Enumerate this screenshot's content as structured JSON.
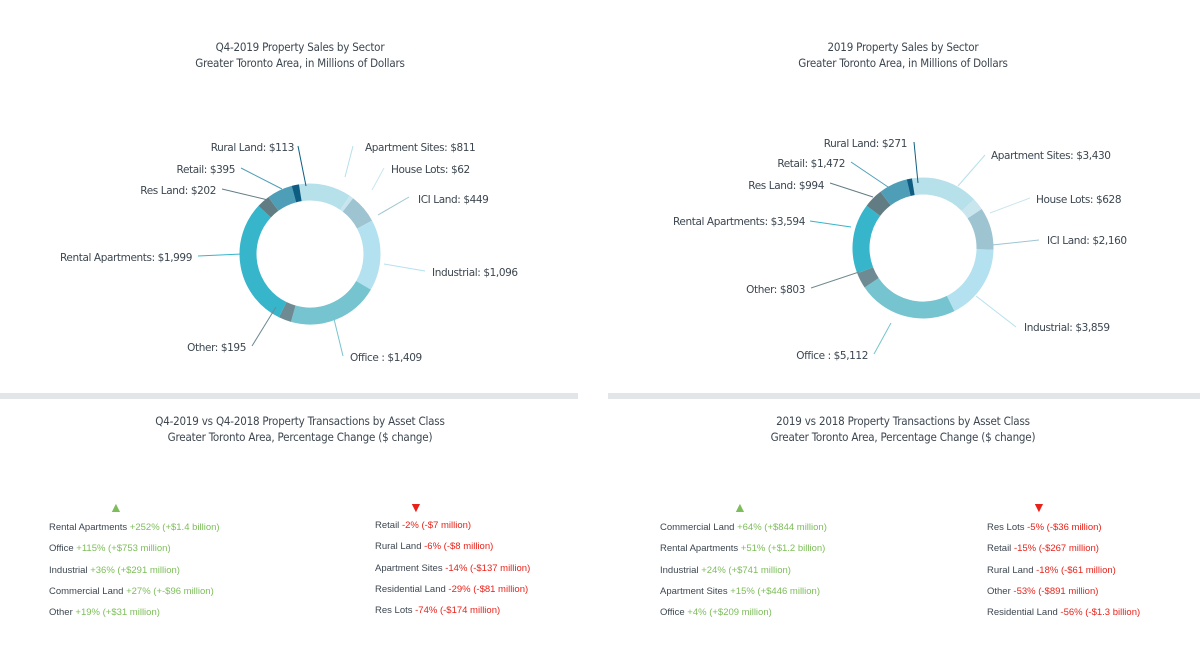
{
  "chart_data": [
    {
      "type": "pie",
      "style": "donut",
      "title": "Q4-2019 Property Sales by Sector",
      "subtitle": "Greater Toronto Area, in Millions of Dollars",
      "unit": "$ millions",
      "labels": [
        {
          "text": "Apartment Sites: $811"
        },
        {
          "text": "House Lots: $62"
        },
        {
          "text": "ICI Land: $449"
        },
        {
          "text": "Industrial: $1,096"
        },
        {
          "text": "Office : $1,409"
        },
        {
          "text": "Other: $195"
        },
        {
          "text": "Rental Apartments: $1,999"
        },
        {
          "text": "Res Land: $202"
        },
        {
          "text": "Retail: $395"
        },
        {
          "text": "Rural Land: $113"
        }
      ],
      "slices": [
        {
          "name": "Apartment Sites",
          "value": 811,
          "color": "#b6e0ea"
        },
        {
          "name": "House Lots",
          "value": 62,
          "color": "#c9e6ee"
        },
        {
          "name": "ICI Land",
          "value": 449,
          "color": "#9ec4d2"
        },
        {
          "name": "Industrial",
          "value": 1096,
          "color": "#b4e1ef"
        },
        {
          "name": "Office",
          "value": 1409,
          "color": "#76c4cf"
        },
        {
          "name": "Other",
          "value": 195,
          "color": "#6e8a92"
        },
        {
          "name": "Rental Apartments",
          "value": 1999,
          "color": "#36b5cb"
        },
        {
          "name": "Res Land",
          "value": 202,
          "color": "#627c84"
        },
        {
          "name": "Retail",
          "value": 395,
          "color": "#4f9eb8"
        },
        {
          "name": "Rural Land",
          "value": 113,
          "color": "#0e5d82"
        }
      ]
    },
    {
      "type": "pie",
      "style": "donut",
      "title": "2019 Property Sales by Sector",
      "subtitle": "Greater Toronto Area, in Millions of Dollars",
      "unit": "$ millions",
      "labels": [
        {
          "text": "Apartment Sites: $3,430"
        },
        {
          "text": "House Lots: $628"
        },
        {
          "text": "ICI Land: $2,160"
        },
        {
          "text": "Industrial: $3,859"
        },
        {
          "text": "Office : $5,112"
        },
        {
          "text": "Other: $803"
        },
        {
          "text": "Rental Apartments: $3,594"
        },
        {
          "text": "Res Land: $994"
        },
        {
          "text": "Retail: $1,472"
        },
        {
          "text": "Rural Land: $271"
        }
      ],
      "slices": [
        {
          "name": "Apartment Sites",
          "value": 3430,
          "color": "#b6e0ea"
        },
        {
          "name": "House Lots",
          "value": 628,
          "color": "#c9e6ee"
        },
        {
          "name": "ICI Land",
          "value": 2160,
          "color": "#9ec4d2"
        },
        {
          "name": "Industrial",
          "value": 3859,
          "color": "#b4e1ef"
        },
        {
          "name": "Office",
          "value": 5112,
          "color": "#76c4cf"
        },
        {
          "name": "Other",
          "value": 803,
          "color": "#6e8a92"
        },
        {
          "name": "Rental Apartments",
          "value": 3594,
          "color": "#36b5cb"
        },
        {
          "name": "Res Land",
          "value": 994,
          "color": "#627c84"
        },
        {
          "name": "Retail",
          "value": 1472,
          "color": "#4f9eb8"
        },
        {
          "name": "Rural Land",
          "value": 271,
          "color": "#0e5d82"
        }
      ]
    }
  ],
  "change_panels": [
    {
      "title": "Q4-2019 vs Q4-2018 Property Transactions by Asset Class",
      "subtitle": "Greater Toronto Area, Percentage Change ($ change)",
      "increases": [
        {
          "name": "Rental Apartments",
          "change": "+252% (+$1.4 billion)"
        },
        {
          "name": "Office",
          "change": "+115% (+$753 million)"
        },
        {
          "name": "Industrial",
          "change": "+36% (+$291 million)"
        },
        {
          "name": "Commercial Land",
          "change": "+27% (+-$96 million)"
        },
        {
          "name": "Other",
          "change": "+19% (+$31 million)"
        }
      ],
      "decreases": [
        {
          "name": "Retail",
          "change": "-2% (-$7 million)"
        },
        {
          "name": "Rural Land",
          "change": "-6%  (-$8 million)"
        },
        {
          "name": "Apartment Sites",
          "change": "-14% (-$137 million)"
        },
        {
          "name": "Residential Land",
          "change": "-29% (-$81 million)"
        },
        {
          "name": "Res Lots",
          "change": "-74% (-$174 million)"
        }
      ]
    },
    {
      "title": "2019 vs 2018 Property Transactions by Asset Class",
      "subtitle": "Greater Toronto Area, Percentage Change ($ change)",
      "increases": [
        {
          "name": "Commercial Land",
          "change": " +64% (+$844 million)"
        },
        {
          "name": "Rental Apartments",
          "change": "+51% (+$1.2 billion)"
        },
        {
          "name": "Industrial",
          "change": "+24% (+$741 million)"
        },
        {
          "name": "Apartment Sites",
          "change": "+15% (+$446 million)"
        },
        {
          "name": "Office",
          "change": " +4% (+$209 million)"
        }
      ],
      "decreases": [
        {
          "name": "Res Lots",
          "change": "-5% (-$36 million)"
        },
        {
          "name": "Retail",
          "change": "-15% (-$267 million)"
        },
        {
          "name": "Rural Land",
          "change": "-18% (-$61 million)"
        },
        {
          "name": "Other",
          "change": "-53% (-$891 million)"
        },
        {
          "name": "Residential Land",
          "change": "-56% (-$1.3 billion)"
        }
      ]
    }
  ],
  "icons": {
    "increase": "up-triangle-icon",
    "decrease": "down-triangle-icon"
  },
  "colors": {
    "increase": "#7dbd5a",
    "decrease": "#e8221a",
    "divider": "#e3e6e9"
  }
}
